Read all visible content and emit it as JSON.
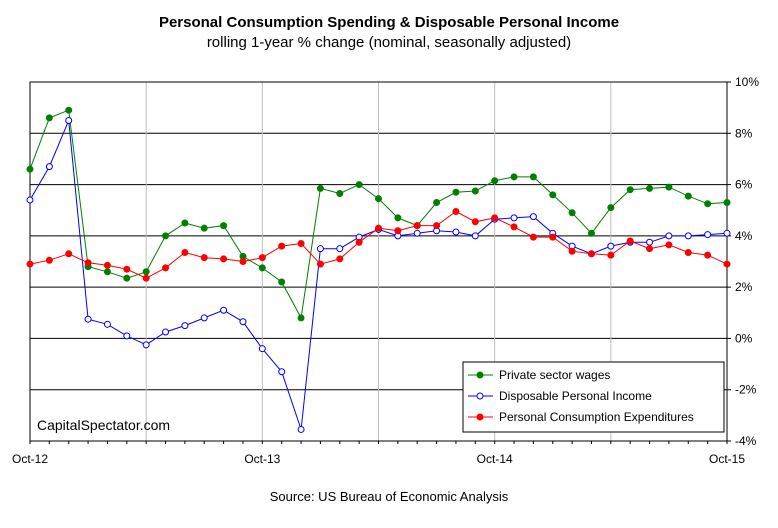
{
  "chart_data": {
    "type": "line",
    "title": "Personal Consumption Spending & Disposable Personal Income",
    "subtitle": "rolling 1-year % change (nominal, seasonally adjusted)",
    "source": "Source:  US Bureau  of Economic  Analysis",
    "watermark": "CapitalSpectator.com",
    "x_tick_labels": [
      "Oct-12",
      "Oct-13",
      "Oct-14",
      "Oct-15"
    ],
    "x_tick_index": [
      0,
      12,
      24,
      36
    ],
    "y_axis_side": "right",
    "y_tick_values": [
      -4,
      -2,
      0,
      2,
      4,
      6,
      8,
      10
    ],
    "y_tick_labels": [
      "-4%",
      "-2%",
      "0%",
      "2%",
      "4%",
      "6%",
      "8%",
      "10%"
    ],
    "ylim": [
      -4,
      10
    ],
    "grid": true,
    "legend_position": "bottom-right",
    "x": [
      "Oct-12",
      "Nov-12",
      "Dec-12",
      "Jan-13",
      "Feb-13",
      "Mar-13",
      "Apr-13",
      "May-13",
      "Jun-13",
      "Jul-13",
      "Aug-13",
      "Sep-13",
      "Oct-13",
      "Nov-13",
      "Dec-13",
      "Jan-14",
      "Feb-14",
      "Mar-14",
      "Apr-14",
      "May-14",
      "Jun-14",
      "Jul-14",
      "Aug-14",
      "Sep-14",
      "Oct-14",
      "Nov-14",
      "Dec-14",
      "Jan-15",
      "Feb-15",
      "Mar-15",
      "Apr-15",
      "May-15",
      "Jun-15",
      "Jul-15",
      "Aug-15",
      "Sep-15",
      "Oct-15"
    ],
    "series": [
      {
        "name": "Private sector wages",
        "color": "#008000",
        "marker": "filled",
        "values": [
          6.6,
          8.6,
          8.9,
          2.8,
          2.6,
          2.35,
          2.6,
          4.0,
          4.5,
          4.3,
          4.4,
          3.2,
          2.75,
          2.2,
          0.8,
          5.85,
          5.65,
          6.0,
          5.45,
          4.7,
          4.4,
          5.3,
          5.7,
          5.75,
          6.15,
          6.3,
          6.3,
          5.6,
          4.9,
          4.1,
          5.1,
          5.8,
          5.85,
          5.9,
          5.55,
          5.25,
          5.3
        ]
      },
      {
        "name": "Disposable Personal Income",
        "color": "#0000ff",
        "marker": "hollow",
        "values": [
          5.4,
          6.7,
          8.5,
          0.75,
          0.55,
          0.1,
          -0.25,
          0.25,
          0.5,
          0.8,
          1.1,
          0.65,
          -0.4,
          -1.3,
          -3.55,
          3.5,
          3.5,
          3.95,
          4.25,
          4.0,
          4.1,
          4.2,
          4.15,
          4.0,
          4.65,
          4.7,
          4.75,
          4.1,
          3.6,
          3.3,
          3.6,
          3.75,
          3.75,
          4.0,
          4.0,
          4.05,
          4.1
        ]
      },
      {
        "name": "Personal Consumption Expenditures",
        "color": "#ff0000",
        "marker": "filled",
        "values": [
          2.9,
          3.05,
          3.3,
          2.95,
          2.85,
          2.7,
          2.35,
          2.75,
          3.35,
          3.15,
          3.1,
          3.0,
          3.15,
          3.6,
          3.7,
          2.9,
          3.1,
          3.75,
          4.3,
          4.2,
          4.4,
          4.4,
          4.95,
          4.55,
          4.7,
          4.35,
          3.95,
          3.95,
          3.4,
          3.3,
          3.25,
          3.8,
          3.5,
          3.65,
          3.35,
          3.25,
          2.9
        ]
      }
    ]
  }
}
